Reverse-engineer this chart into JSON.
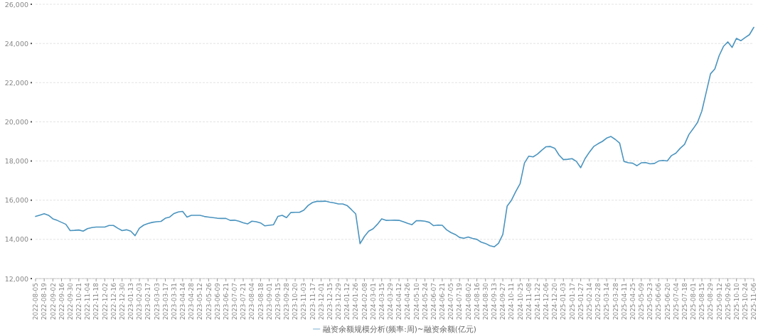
{
  "chart_data": {
    "type": "line",
    "categories": [
      "2022-08-05",
      null,
      "2022-08-19",
      null,
      "2022-09-02",
      null,
      "2022-09-16",
      null,
      "2022-09-30",
      null,
      "2022-10-21",
      null,
      "2022-11-04",
      null,
      "2022-11-18",
      null,
      "2022-12-02",
      null,
      "2022-12-16",
      null,
      "2022-12-30",
      null,
      "2023-01-13",
      null,
      "2023-02-03",
      null,
      "2023-02-17",
      null,
      "2023-03-03",
      null,
      "2023-03-17",
      null,
      "2023-03-31",
      null,
      "2023-04-14",
      null,
      "2023-04-28",
      null,
      "2023-05-12",
      null,
      "2023-05-26",
      null,
      "2023-06-09",
      null,
      "2023-06-21",
      null,
      "2023-07-07",
      null,
      "2023-07-21",
      null,
      "2023-08-04",
      null,
      "2023-08-18",
      null,
      "2023-09-01",
      null,
      "2023-09-15",
      null,
      "2023-09-28",
      null,
      "2023-10-20",
      null,
      "2023-11-03",
      null,
      "2023-11-17",
      null,
      "2023-12-01",
      null,
      "2023-12-15",
      null,
      "2023-12-29",
      null,
      "2024-01-12",
      null,
      "2024-01-26",
      null,
      "2024-02-08",
      null,
      "2024-03-01",
      null,
      "2024-03-15",
      null,
      "2024-03-29",
      null,
      "2024-04-12",
      null,
      "2024-04-26",
      null,
      "2024-05-10",
      null,
      "2024-05-24",
      null,
      "2024-06-07",
      null,
      "2024-06-21",
      null,
      "2024-07-05",
      null,
      "2024-07-19",
      null,
      "2024-08-02",
      null,
      "2024-08-16",
      null,
      "2024-08-30",
      null,
      "2024-09-13",
      null,
      "2024-09-27",
      null,
      "2024-10-11",
      null,
      "2024-10-25",
      null,
      "2024-11-08",
      null,
      "2024-11-22",
      null,
      "2024-12-06",
      null,
      "2024-12-20",
      null,
      "2025-01-03",
      null,
      "2025-01-17",
      null,
      "2025-01-27",
      null,
      "2025-02-14",
      null,
      "2025-02-28",
      null,
      "2025-03-14",
      null,
      "2025-03-28",
      null,
      "2025-04-11",
      null,
      "2025-04-25",
      null,
      "2025-05-09",
      null,
      "2025-05-23",
      null,
      "2025-06-06",
      null,
      "2025-06-20",
      null,
      "2025-07-04",
      null,
      "2025-07-18",
      null,
      "2025-08-01",
      null,
      "2025-08-15",
      null,
      "2025-08-29",
      null,
      "2025-09-12",
      null,
      "2025-09-26",
      null,
      "2025-10-10",
      null,
      "2025-10-24",
      null,
      "2025-11-06"
    ],
    "series": [
      {
        "name": "融资余额规模分析(频率:周)~融资余额(亿元)",
        "color": "#4b94bf",
        "values": [
          15170,
          15240,
          15310,
          15230,
          15050,
          14970,
          14870,
          14770,
          14450,
          14460,
          14480,
          14420,
          14550,
          14600,
          14630,
          14630,
          14630,
          14710,
          14710,
          14570,
          14450,
          14490,
          14420,
          14190,
          14570,
          14730,
          14810,
          14870,
          14900,
          14920,
          15080,
          15140,
          15320,
          15400,
          15430,
          15140,
          15230,
          15230,
          15230,
          15170,
          15140,
          15110,
          15080,
          15070,
          15070,
          14970,
          14980,
          14930,
          14850,
          14790,
          14930,
          14900,
          14840,
          14690,
          14720,
          14750,
          15170,
          15230,
          15110,
          15370,
          15380,
          15380,
          15490,
          15730,
          15880,
          15940,
          15940,
          15950,
          15900,
          15860,
          15810,
          15810,
          15730,
          15520,
          15300,
          13780,
          14150,
          14420,
          14540,
          14770,
          15050,
          14970,
          14975,
          14980,
          14970,
          14900,
          14820,
          14750,
          14950,
          14950,
          14930,
          14870,
          14700,
          14730,
          14720,
          14490,
          14350,
          14250,
          14100,
          14060,
          14120,
          14050,
          14000,
          13860,
          13790,
          13680,
          13620,
          13800,
          14250,
          15700,
          16000,
          16450,
          16850,
          17900,
          18250,
          18210,
          18350,
          18550,
          18730,
          18740,
          18650,
          18300,
          18070,
          18090,
          18120,
          17980,
          17660,
          18120,
          18450,
          18740,
          18880,
          19000,
          19170,
          19250,
          19100,
          18910,
          17980,
          17910,
          17890,
          17760,
          17910,
          17920,
          17860,
          17870,
          18000,
          18030,
          18000,
          18280,
          18400,
          18650,
          18850,
          19350,
          19650,
          19970,
          20550,
          21500,
          22450,
          22700,
          23380,
          23850,
          24080,
          23800,
          24260,
          24140,
          24300,
          24450,
          24820
        ]
      }
    ],
    "ylim": [
      12000,
      26000
    ],
    "yticks": [
      {
        "value": 12000,
        "label": "12,000"
      },
      {
        "value": 14000,
        "label": "14,000"
      },
      {
        "value": 16000,
        "label": "16,000"
      },
      {
        "value": 18000,
        "label": "18,000"
      },
      {
        "value": 20000,
        "label": "20,000"
      },
      {
        "value": 22000,
        "label": "22,000"
      },
      {
        "value": 24000,
        "label": "24,000"
      },
      {
        "value": 26000,
        "label": "26,000"
      }
    ],
    "grid": "y",
    "legend": "bottom",
    "marker": "none",
    "line_style": "solid"
  }
}
